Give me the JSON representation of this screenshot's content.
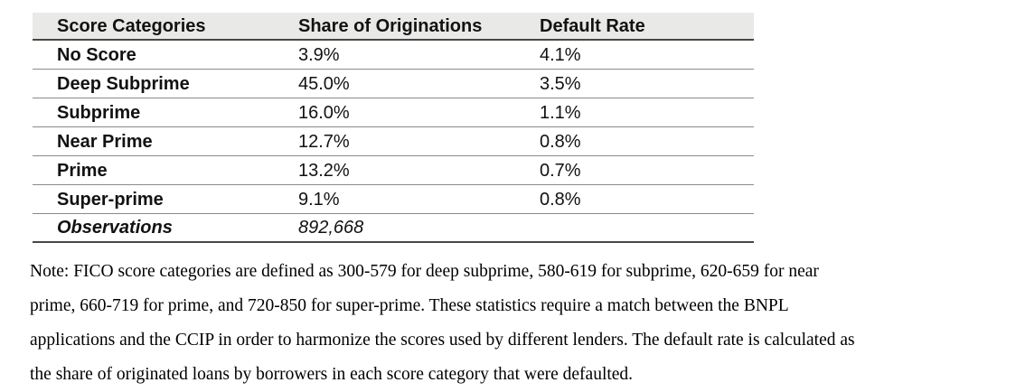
{
  "table": {
    "columns": [
      "Score Categories",
      "Share of Originations",
      "Default Rate"
    ],
    "rows": [
      {
        "category": "No Score",
        "share": "3.9%",
        "default_rate": "4.1%"
      },
      {
        "category": "Deep Subprime",
        "share": "45.0%",
        "default_rate": "3.5%"
      },
      {
        "category": "Subprime",
        "share": "16.0%",
        "default_rate": "1.1%"
      },
      {
        "category": "Near Prime",
        "share": "12.7%",
        "default_rate": "0.8%"
      },
      {
        "category": "Prime",
        "share": "13.2%",
        "default_rate": "0.7%"
      },
      {
        "category": "Super-prime",
        "share": "9.1%",
        "default_rate": "0.8%"
      }
    ],
    "footer": {
      "label": "Observations",
      "value": "892,668"
    }
  },
  "note": {
    "lines": [
      "Note: FICO score categories are defined as 300-579 for deep subprime, 580-619 for subprime, 620-659 for near",
      "prime, 660-719 for prime, and 720-850 for super-prime. These statistics require a match between the BNPL",
      "applications and the CCIP in order to harmonize the scores used by different lenders. The default rate is calculated as",
      "the share of originated loans by borrowers in each score category that were defaulted."
    ]
  },
  "colors": {
    "header_background": "#e9e9e7",
    "rule_dark": "#474747",
    "rule_light": "#8a8a8a",
    "text": "#121212"
  }
}
